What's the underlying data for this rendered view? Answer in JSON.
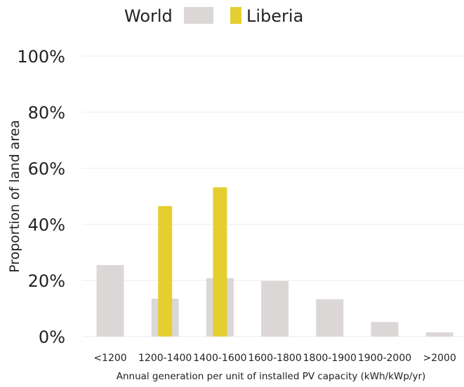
{
  "chart_data": {
    "type": "bar",
    "title": "",
    "xlabel": "Annual generation per unit of installed PV capacity (kWh/kWp/yr)",
    "ylabel": "Proportion of land area",
    "categories": [
      "<1200",
      "1200-1400",
      "1400-1600",
      "1600-1800",
      "1800-1900",
      "1900-2000",
      ">2000"
    ],
    "series": [
      {
        "name": "World",
        "color": "#dcd7d7",
        "values": [
          25.5,
          13.5,
          20.8,
          19.8,
          13.3,
          5.2,
          1.5
        ]
      },
      {
        "name": "Liberia",
        "color": "#e5cf30",
        "values": [
          0,
          46.5,
          53.2,
          0,
          0,
          0,
          0
        ]
      }
    ],
    "ylim": [
      0,
      100
    ],
    "yticks": [
      0,
      20,
      40,
      60,
      80,
      100
    ],
    "ytick_labels": [
      "0%",
      "20%",
      "40%",
      "60%",
      "80%",
      "100%"
    ],
    "grid": true,
    "legend": "top-center"
  }
}
